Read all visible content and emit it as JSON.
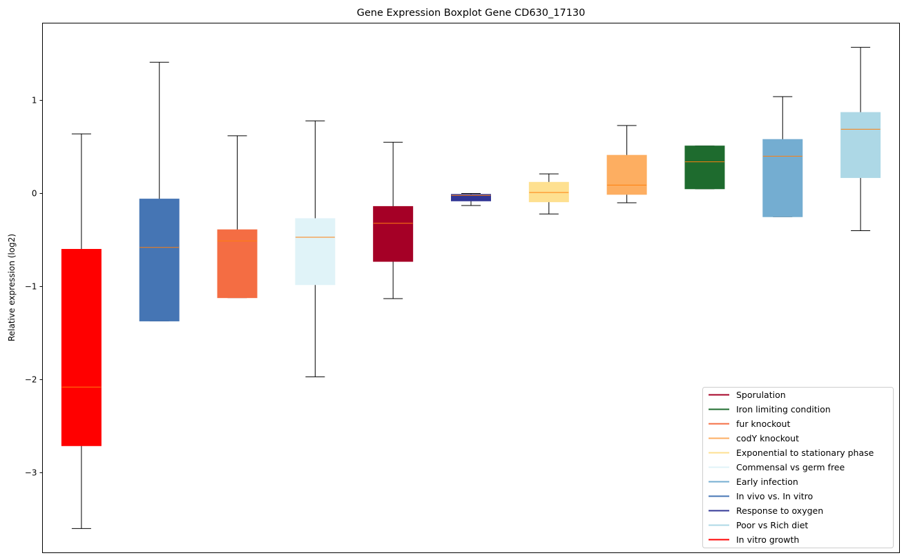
{
  "chart_data": {
    "type": "boxplot",
    "title": "Gene Expression Boxplot Gene CD630_17130",
    "xlabel": "",
    "ylabel": "Relative expression (log2)",
    "ylim": [
      -3.86,
      1.83
    ],
    "yticks": [
      -3,
      -2,
      -1,
      0,
      1
    ],
    "ytick_labels": [
      "−3",
      "−2",
      "−1",
      "0",
      "1"
    ],
    "grid": false,
    "legend_position": "lower-right",
    "median_color": "#ff7f0e",
    "series": [
      {
        "name": "In vitro growth",
        "color": "#ff0000",
        "whislo": -3.6,
        "q1": -2.71,
        "med": -2.08,
        "q3": -0.6,
        "whishi": 0.64
      },
      {
        "name": "In vivo vs. In vitro",
        "color": "#4575b4",
        "whislo": -1.37,
        "q1": -1.37,
        "med": -0.58,
        "q3": -0.06,
        "whishi": 1.41
      },
      {
        "name": "fur knockout",
        "color": "#f46d43",
        "whislo": -1.12,
        "q1": -1.12,
        "med": -0.51,
        "q3": -0.39,
        "whishi": 0.62
      },
      {
        "name": "Commensal vs germ free",
        "color": "#e0f3f8",
        "whislo": -1.97,
        "q1": -0.98,
        "med": -0.47,
        "q3": -0.27,
        "whishi": 0.78
      },
      {
        "name": "Sporulation",
        "color": "#a50026",
        "whislo": -1.13,
        "q1": -0.73,
        "med": -0.32,
        "q3": -0.14,
        "whishi": 0.55
      },
      {
        "name": "Response to oxygen",
        "color": "#313695",
        "whislo": -0.13,
        "q1": -0.08,
        "med": -0.02,
        "q3": -0.01,
        "whishi": 0.0
      },
      {
        "name": "Exponential to stationary phase",
        "color": "#fee090",
        "whislo": -0.22,
        "q1": -0.09,
        "med": 0.01,
        "q3": 0.12,
        "whishi": 0.21
      },
      {
        "name": "codY knockout",
        "color": "#fdae61",
        "whislo": -0.1,
        "q1": -0.01,
        "med": 0.09,
        "q3": 0.41,
        "whishi": 0.73
      },
      {
        "name": "Iron limiting condition",
        "color": "#1e6b2e",
        "whislo": 0.05,
        "q1": 0.05,
        "med": 0.34,
        "q3": 0.51,
        "whishi": 0.51
      },
      {
        "name": "Early infection",
        "color": "#74add1",
        "whislo": -0.25,
        "q1": -0.25,
        "med": 0.4,
        "q3": 0.58,
        "whishi": 1.04
      },
      {
        "name": "Poor vs Rich diet",
        "color": "#add8e6",
        "whislo": -0.4,
        "q1": 0.17,
        "med": 0.69,
        "q3": 0.87,
        "whishi": 1.57
      }
    ],
    "legend": [
      {
        "label": "Sporulation",
        "color": "#a50026"
      },
      {
        "label": "Iron limiting condition",
        "color": "#1e6b2e"
      },
      {
        "label": "fur knockout",
        "color": "#f46d43"
      },
      {
        "label": "codY knockout",
        "color": "#fdae61"
      },
      {
        "label": "Exponential to stationary phase",
        "color": "#fee090"
      },
      {
        "label": "Commensal vs germ free",
        "color": "#e0f3f8"
      },
      {
        "label": "Early infection",
        "color": "#74add1"
      },
      {
        "label": "In vivo vs. In vitro",
        "color": "#4575b4"
      },
      {
        "label": "Response to oxygen",
        "color": "#313695"
      },
      {
        "label": "Poor vs Rich diet",
        "color": "#add8e6"
      },
      {
        "label": "In vitro growth",
        "color": "#ff0000"
      }
    ]
  }
}
